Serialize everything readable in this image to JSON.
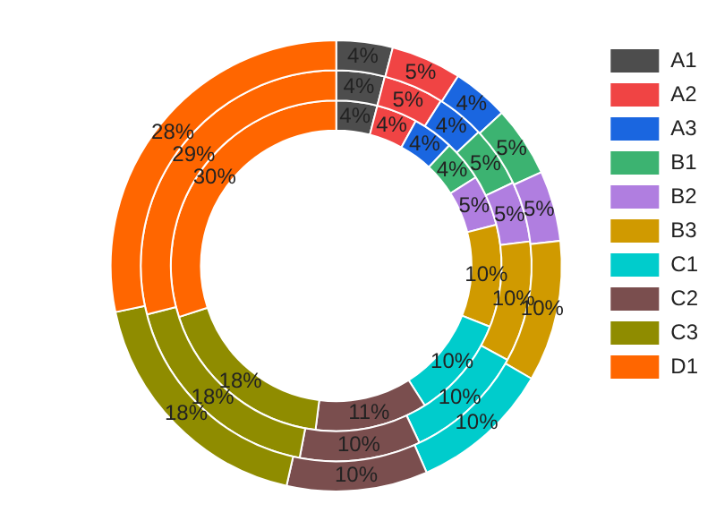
{
  "chart_data": {
    "type": "donut",
    "categories": [
      "A1",
      "A2",
      "A3",
      "B1",
      "B2",
      "B3",
      "C1",
      "C2",
      "C3",
      "D1"
    ],
    "colors": [
      "#4d4d4d",
      "#f04444",
      "#1a66e0",
      "#3cb371",
      "#b07ee0",
      "#d09a00",
      "#00cccc",
      "#7a4e4e",
      "#8f8c00",
      "#ff6600"
    ],
    "series": [
      {
        "values": [
          4,
          5,
          4,
          5,
          5,
          10,
          10,
          10,
          18,
          28
        ],
        "value_labels": [
          "4%",
          "5%",
          "4%",
          "5%",
          "5%",
          "10%",
          "10%",
          "10%",
          "18%",
          "28%"
        ]
      },
      {
        "values": [
          4,
          5,
          4,
          5,
          5,
          10,
          10,
          10,
          18,
          29
        ],
        "value_labels": [
          "4%",
          "5%",
          "4%",
          "5%",
          "5%",
          "10%",
          "10%",
          "10%",
          "18%",
          "29%"
        ]
      },
      {
        "values": [
          4,
          4,
          4,
          4,
          5,
          10,
          10,
          11,
          18,
          30
        ],
        "value_labels": [
          "4%",
          "4%",
          "4%",
          "4%",
          "5%",
          "10%",
          "10%",
          "11%",
          "18%",
          "30%"
        ]
      }
    ],
    "legend": "top right"
  }
}
